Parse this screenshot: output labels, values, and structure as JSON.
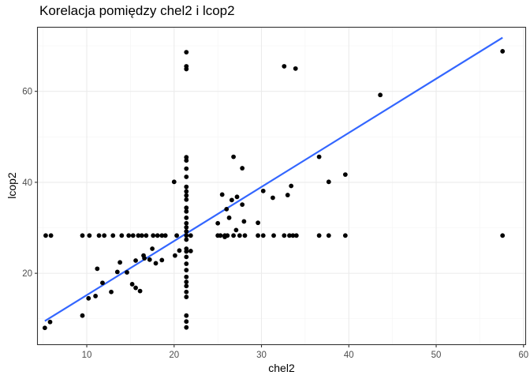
{
  "chart_data": {
    "type": "scatter",
    "title": "Korelacja pomiędzy chel2 i lcop2",
    "xlabel": "chel2",
    "ylabel": "lcop2",
    "xlim": [
      4.4,
      60.2
    ],
    "ylim": [
      4.4,
      74.0
    ],
    "x_ticks": [
      10,
      20,
      30,
      40,
      50,
      60
    ],
    "y_ticks": [
      20,
      40,
      60
    ],
    "grid": true,
    "legend": "none",
    "point_color": "#000000",
    "trendline": {
      "method": "linear",
      "color": "#3366ff",
      "x": [
        5.2,
        57.6
      ],
      "y": [
        9.5,
        71.8
      ]
    },
    "points": [
      {
        "x": 5.2,
        "y": 8.0
      },
      {
        "x": 5.8,
        "y": 9.3
      },
      {
        "x": 5.3,
        "y": 28.3
      },
      {
        "x": 5.9,
        "y": 28.3
      },
      {
        "x": 9.5,
        "y": 10.7
      },
      {
        "x": 9.5,
        "y": 28.3
      },
      {
        "x": 10.2,
        "y": 14.5
      },
      {
        "x": 10.3,
        "y": 28.3
      },
      {
        "x": 11.0,
        "y": 15.0
      },
      {
        "x": 11.2,
        "y": 21.0
      },
      {
        "x": 11.4,
        "y": 28.3
      },
      {
        "x": 11.8,
        "y": 17.9
      },
      {
        "x": 12.0,
        "y": 28.3
      },
      {
        "x": 12.8,
        "y": 15.9
      },
      {
        "x": 13.0,
        "y": 28.3
      },
      {
        "x": 13.5,
        "y": 20.3
      },
      {
        "x": 13.8,
        "y": 22.4
      },
      {
        "x": 14.0,
        "y": 28.3
      },
      {
        "x": 14.6,
        "y": 20.2
      },
      {
        "x": 14.8,
        "y": 28.3
      },
      {
        "x": 15.2,
        "y": 17.6
      },
      {
        "x": 15.3,
        "y": 28.3
      },
      {
        "x": 15.6,
        "y": 22.8
      },
      {
        "x": 15.6,
        "y": 16.8
      },
      {
        "x": 15.9,
        "y": 28.3
      },
      {
        "x": 16.1,
        "y": 16.1
      },
      {
        "x": 16.3,
        "y": 28.3
      },
      {
        "x": 16.5,
        "y": 23.9
      },
      {
        "x": 16.6,
        "y": 23.3
      },
      {
        "x": 16.8,
        "y": 28.3
      },
      {
        "x": 17.2,
        "y": 23.0
      },
      {
        "x": 17.5,
        "y": 25.4
      },
      {
        "x": 17.6,
        "y": 28.3
      },
      {
        "x": 17.9,
        "y": 22.2
      },
      {
        "x": 18.1,
        "y": 28.3
      },
      {
        "x": 18.6,
        "y": 28.3
      },
      {
        "x": 18.6,
        "y": 22.9
      },
      {
        "x": 19.0,
        "y": 28.3
      },
      {
        "x": 20.0,
        "y": 40.1
      },
      {
        "x": 20.1,
        "y": 23.9
      },
      {
        "x": 20.3,
        "y": 28.3
      },
      {
        "x": 20.6,
        "y": 25.0
      },
      {
        "x": 21.4,
        "y": 68.6
      },
      {
        "x": 21.4,
        "y": 65.5
      },
      {
        "x": 21.4,
        "y": 64.9
      },
      {
        "x": 21.4,
        "y": 45.5
      },
      {
        "x": 21.4,
        "y": 44.8
      },
      {
        "x": 21.4,
        "y": 43.0
      },
      {
        "x": 21.4,
        "y": 41.2
      },
      {
        "x": 21.4,
        "y": 39.0
      },
      {
        "x": 21.4,
        "y": 38.0
      },
      {
        "x": 21.4,
        "y": 37.1
      },
      {
        "x": 21.4,
        "y": 36.2
      },
      {
        "x": 21.4,
        "y": 34.4
      },
      {
        "x": 21.4,
        "y": 33.6
      },
      {
        "x": 21.4,
        "y": 32.2
      },
      {
        "x": 21.4,
        "y": 31.0
      },
      {
        "x": 21.4,
        "y": 30.1
      },
      {
        "x": 21.4,
        "y": 29.2
      },
      {
        "x": 21.4,
        "y": 28.3
      },
      {
        "x": 21.4,
        "y": 27.4
      },
      {
        "x": 21.4,
        "y": 25.4
      },
      {
        "x": 21.4,
        "y": 24.8
      },
      {
        "x": 21.4,
        "y": 23.6
      },
      {
        "x": 21.4,
        "y": 22.1
      },
      {
        "x": 21.4,
        "y": 20.7
      },
      {
        "x": 21.4,
        "y": 19.2
      },
      {
        "x": 21.4,
        "y": 18.1
      },
      {
        "x": 21.4,
        "y": 17.2
      },
      {
        "x": 21.4,
        "y": 15.9
      },
      {
        "x": 21.4,
        "y": 14.8
      },
      {
        "x": 21.4,
        "y": 10.7
      },
      {
        "x": 21.4,
        "y": 9.4
      },
      {
        "x": 21.4,
        "y": 8.1
      },
      {
        "x": 21.9,
        "y": 24.9
      },
      {
        "x": 21.9,
        "y": 28.3
      },
      {
        "x": 25.0,
        "y": 31.0
      },
      {
        "x": 25.0,
        "y": 28.3
      },
      {
        "x": 25.3,
        "y": 28.3
      },
      {
        "x": 25.5,
        "y": 37.3
      },
      {
        "x": 25.8,
        "y": 28.3
      },
      {
        "x": 25.8,
        "y": 28.0
      },
      {
        "x": 26.0,
        "y": 34.1
      },
      {
        "x": 26.1,
        "y": 28.3
      },
      {
        "x": 26.3,
        "y": 32.2
      },
      {
        "x": 26.6,
        "y": 36.1
      },
      {
        "x": 26.8,
        "y": 45.6
      },
      {
        "x": 26.8,
        "y": 28.3
      },
      {
        "x": 27.1,
        "y": 29.5
      },
      {
        "x": 27.2,
        "y": 36.8
      },
      {
        "x": 27.5,
        "y": 28.3
      },
      {
        "x": 27.8,
        "y": 35.1
      },
      {
        "x": 27.8,
        "y": 43.1
      },
      {
        "x": 28.0,
        "y": 31.4
      },
      {
        "x": 28.1,
        "y": 28.3
      },
      {
        "x": 29.6,
        "y": 28.3
      },
      {
        "x": 29.6,
        "y": 31.1
      },
      {
        "x": 30.2,
        "y": 38.1
      },
      {
        "x": 30.2,
        "y": 28.3
      },
      {
        "x": 31.3,
        "y": 36.6
      },
      {
        "x": 31.4,
        "y": 28.3
      },
      {
        "x": 32.6,
        "y": 65.5
      },
      {
        "x": 32.6,
        "y": 28.3
      },
      {
        "x": 33.0,
        "y": 37.2
      },
      {
        "x": 33.2,
        "y": 28.3
      },
      {
        "x": 33.4,
        "y": 39.2
      },
      {
        "x": 33.6,
        "y": 28.3
      },
      {
        "x": 33.9,
        "y": 65.0
      },
      {
        "x": 34.0,
        "y": 28.3
      },
      {
        "x": 36.6,
        "y": 45.6
      },
      {
        "x": 36.6,
        "y": 28.3
      },
      {
        "x": 37.7,
        "y": 40.1
      },
      {
        "x": 37.7,
        "y": 28.3
      },
      {
        "x": 39.6,
        "y": 41.7
      },
      {
        "x": 39.6,
        "y": 28.3
      },
      {
        "x": 43.6,
        "y": 59.2
      },
      {
        "x": 57.6,
        "y": 68.8
      },
      {
        "x": 57.6,
        "y": 28.3
      }
    ]
  }
}
